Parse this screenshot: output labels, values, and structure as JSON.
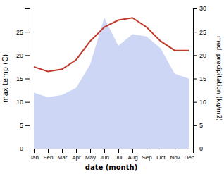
{
  "chart_data": {
    "type": "line",
    "xlabel": "date (month)",
    "ylabel": "max temp (C)",
    "y2label": "med. precipitation (kg/m2)",
    "categories": [
      "Jan",
      "Feb",
      "Mar",
      "Apr",
      "May",
      "Jun",
      "Jul",
      "Aug",
      "Sep",
      "Oct",
      "Nov",
      "Dec"
    ],
    "series": [
      {
        "type": "area",
        "axis": "y2",
        "color": "#b8c4f0",
        "values": [
          12.0,
          11.0,
          11.5,
          13.0,
          18.0,
          28.0,
          22.0,
          24.5,
          24.0,
          21.5,
          16.0,
          15.0
        ]
      },
      {
        "type": "line",
        "color": "#c0392b",
        "values": [
          17.5,
          16.5,
          17.0,
          19.0,
          23.0,
          26.0,
          27.5,
          28.0,
          26.0,
          23.0,
          21.0,
          21.0
        ]
      }
    ],
    "ylim": [
      0,
      30
    ],
    "yticks": [
      0,
      5,
      10,
      15,
      20,
      25
    ],
    "y2lim": [
      0,
      30
    ],
    "y2ticks": [
      0,
      5,
      10,
      15,
      20,
      25,
      30
    ],
    "grid": false
  }
}
